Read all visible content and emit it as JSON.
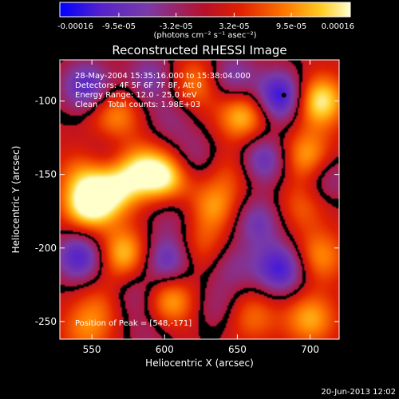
{
  "chart_data": {
    "type": "heatmap",
    "title": "Reconstructed RHESSI Image",
    "xlabel": "Heliocentric X (arcsec)",
    "ylabel": "Heliocentric Y (arcsec)",
    "xlim": [
      528,
      720
    ],
    "ylim": [
      -262,
      -72
    ],
    "x_ticks": [
      550,
      600,
      650,
      700
    ],
    "y_ticks": [
      -100,
      -150,
      -200,
      -250
    ],
    "colorbar": {
      "min": -0.00016,
      "max": 0.00016,
      "tick_values": [
        -0.00016,
        -9.5e-05,
        -3.2e-05,
        3.2e-05,
        9.5e-05,
        0.00016
      ],
      "tick_labels": [
        "-0.00016",
        "-9.5e-05",
        "-3.2e-05",
        "3.2e-05",
        "9.5e-05",
        "0.00016"
      ],
      "unit_label": "(photons cm⁻² s⁻¹ asec⁻²)",
      "colors": [
        "#0000ff",
        "#5522cc",
        "#7a3aa8",
        "#b8102a",
        "#e02000",
        "#ff7a00",
        "#ffcc22",
        "#ffffcc"
      ]
    },
    "annotations": {
      "time": "28-May-2004 15:35:16.000 to 15:38:04.000",
      "detectors": "Detectors: 4F 5F 6F 7F 8F, Att 0",
      "energy": "Energy Range: 12.0 - 25.0 keV",
      "clean": "Clean    Total counts: 1.98E+03",
      "peak": "Position of Peak = [548,-171]"
    },
    "peak_position": [
      548,
      -171
    ],
    "marker_position": [
      682,
      -96
    ],
    "blobs": [
      {
        "x": 546,
        "y": -90,
        "v": -0.00012
      },
      {
        "x": 566,
        "y": -110,
        "v": 9e-05
      },
      {
        "x": 590,
        "y": -84,
        "v": -8e-05
      },
      {
        "x": 604,
        "y": -112,
        "v": -5e-05
      },
      {
        "x": 622,
        "y": -88,
        "v": 8.5e-05
      },
      {
        "x": 646,
        "y": -84,
        "v": -9e-05
      },
      {
        "x": 654,
        "y": -110,
        "v": 0.00012
      },
      {
        "x": 680,
        "y": -97,
        "v": -0.00016
      },
      {
        "x": 706,
        "y": -100,
        "v": 0.00015
      },
      {
        "x": 560,
        "y": -136,
        "v": -4e-05
      },
      {
        "x": 544,
        "y": -150,
        "v": 7e-05
      },
      {
        "x": 582,
        "y": -146,
        "v": 0.0001
      },
      {
        "x": 600,
        "y": -152,
        "v": 0.000145
      },
      {
        "x": 620,
        "y": -138,
        "v": -6e-05
      },
      {
        "x": 646,
        "y": -148,
        "v": 5e-05
      },
      {
        "x": 668,
        "y": -140,
        "v": -0.00011
      },
      {
        "x": 698,
        "y": -138,
        "v": 0.00011
      },
      {
        "x": 712,
        "y": -152,
        "v": -7e-05
      },
      {
        "x": 548,
        "y": -171,
        "v": 0.00016
      },
      {
        "x": 566,
        "y": -160,
        "v": 0.00011
      },
      {
        "x": 604,
        "y": -176,
        "v": -5e-05
      },
      {
        "x": 634,
        "y": -172,
        "v": 9e-05
      },
      {
        "x": 664,
        "y": -182,
        "v": -9e-05
      },
      {
        "x": 694,
        "y": -172,
        "v": 6e-05
      },
      {
        "x": 542,
        "y": -206,
        "v": -0.00013
      },
      {
        "x": 572,
        "y": -204,
        "v": 0.00012
      },
      {
        "x": 602,
        "y": -208,
        "v": -0.00011
      },
      {
        "x": 626,
        "y": -200,
        "v": 6e-05
      },
      {
        "x": 646,
        "y": -212,
        "v": -6e-05
      },
      {
        "x": 680,
        "y": -214,
        "v": -0.00014
      },
      {
        "x": 706,
        "y": -206,
        "v": 9e-05
      },
      {
        "x": 556,
        "y": -238,
        "v": 5e-05
      },
      {
        "x": 580,
        "y": -232,
        "v": -6e-05
      },
      {
        "x": 604,
        "y": -236,
        "v": 0.00011
      },
      {
        "x": 636,
        "y": -240,
        "v": -5e-05
      },
      {
        "x": 660,
        "y": -246,
        "v": 7e-05
      },
      {
        "x": 700,
        "y": -248,
        "v": 0.0001
      },
      {
        "x": 546,
        "y": -256,
        "v": 7e-05
      },
      {
        "x": 590,
        "y": -258,
        "v": -4e-05
      }
    ],
    "grid": false
  },
  "footer": {
    "timestamp": "20-Jun-2013 12:02"
  }
}
